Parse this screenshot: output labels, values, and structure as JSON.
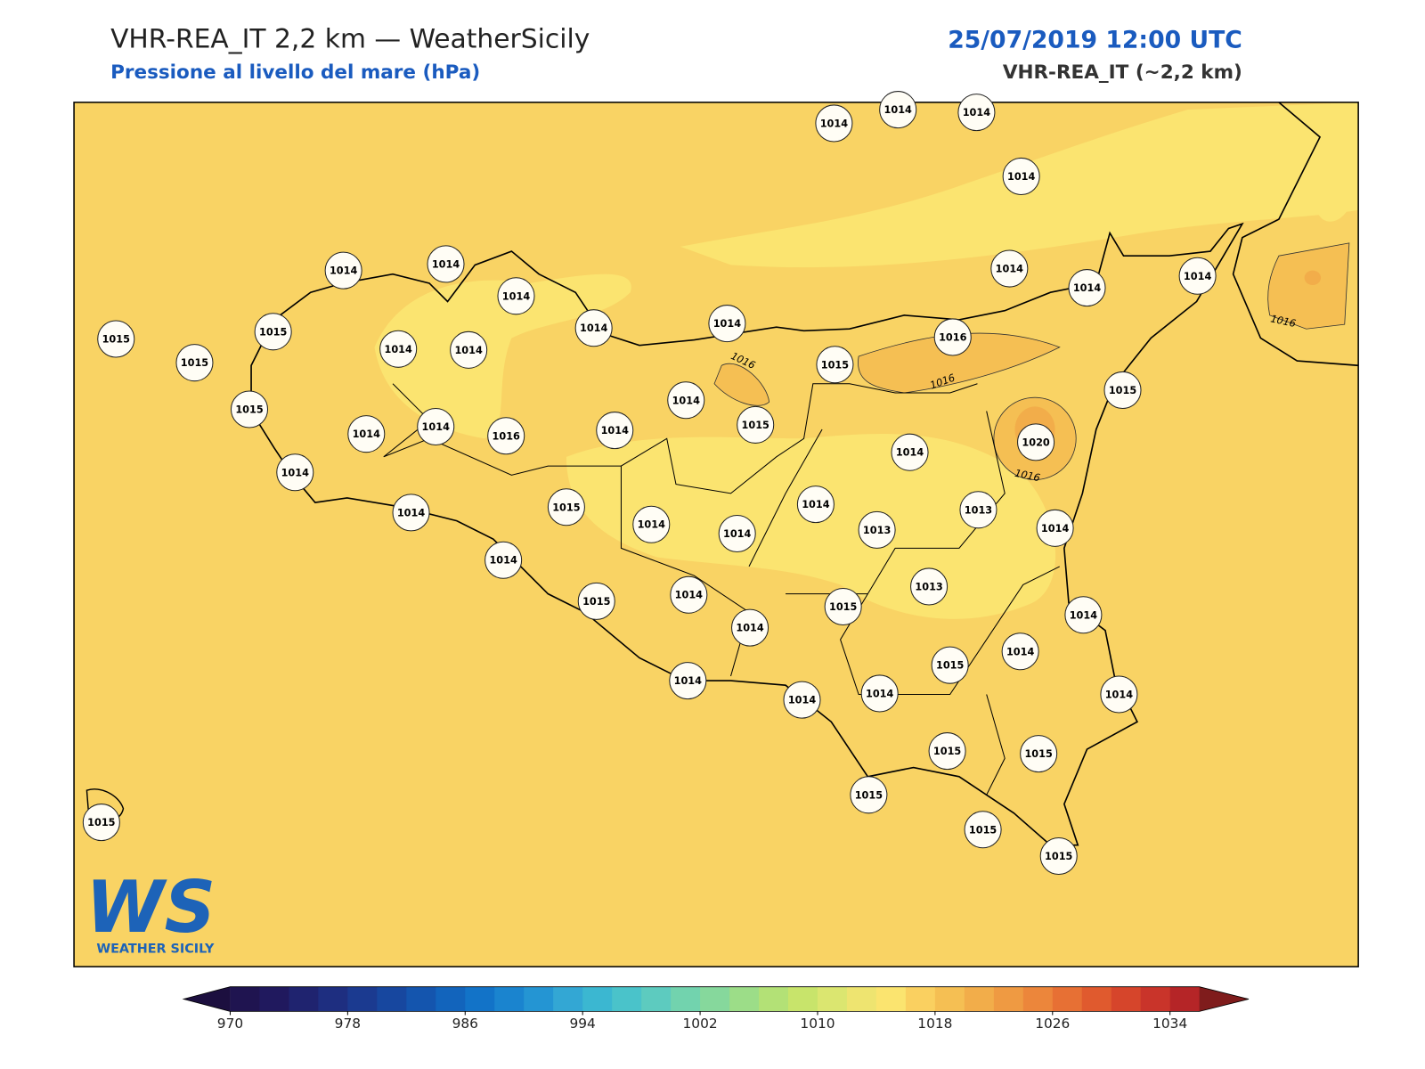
{
  "header": {
    "title": "VHR-REA_IT 2,2 km — WeatherSicily",
    "subtitle": "Pressione al livello del mare (hPa)",
    "datetime": "25/07/2019 12:00 UTC",
    "model": "VHR-REA_IT (~2,2 km)"
  },
  "map": {
    "stations": [
      1014,
      1014,
      1014,
      1014,
      1014,
      1014,
      1014,
      1014,
      1014,
      1014,
      1014,
      1014,
      1015,
      1015,
      1015,
      1014,
      1014,
      1015,
      1016,
      1015,
      1015,
      1014,
      1015,
      1014,
      1014,
      1016,
      1014,
      1014,
      1020,
      1014,
      1014,
      1015,
      1014,
      1013,
      1013,
      1014,
      1014,
      1014,
      1014,
      1015,
      1014,
      1013,
      1015,
      1014,
      1014,
      1014,
      1015,
      1014,
      1014,
      1014,
      1014,
      1015,
      1015,
      1015,
      1015,
      1015,
      1015
    ],
    "contour_labels": [
      "1016",
      "1016",
      "1016",
      "1016"
    ]
  },
  "logo": {
    "mark": "WS",
    "name": "WEATHER SICILY"
  },
  "colorbar": {
    "range": [
      970,
      1036
    ],
    "ticks": [
      970,
      978,
      986,
      994,
      1002,
      1010,
      1018,
      1026,
      1034
    ],
    "colors": [
      "#1f1450",
      "#20195e",
      "#1f236f",
      "#1e2e80",
      "#1b3a90",
      "#17479f",
      "#1455ae",
      "#1264bc",
      "#1273c8",
      "#1a84cf",
      "#2495d3",
      "#33a7d4",
      "#3bb7d1",
      "#4ac3ca",
      "#5dcbbf",
      "#72d3ae",
      "#86d89c",
      "#9cdd88",
      "#b3e176",
      "#c8e46b",
      "#dbe670",
      "#eee470",
      "#fbe46f",
      "#fad060",
      "#f5bf53",
      "#f2ad4a",
      "#ef9a42",
      "#ec863b",
      "#e77034",
      "#e05a2e",
      "#d6452b",
      "#c9342a",
      "#b52527"
    ],
    "under_color": "#1c0f3f",
    "over_color": "#7f1c1c"
  }
}
